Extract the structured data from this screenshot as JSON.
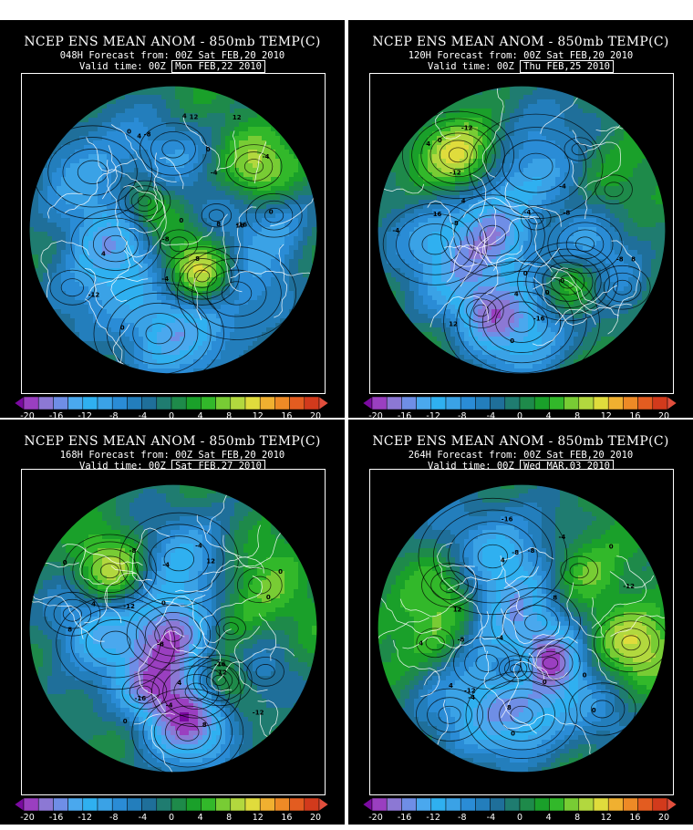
{
  "panels": [
    {
      "title": "NCEP ENS MEAN ANOM - 850mb TEMP(C)",
      "forecast": "048H Forecast from: 00Z Sat FEB,20 2010",
      "valid_prefix": "Valid time: 00Z",
      "valid_date": "Mon FEB,22 2010"
    },
    {
      "title": "NCEP ENS MEAN ANOM - 850mb TEMP(C)",
      "forecast": "120H Forecast from: 00Z Sat FEB,20 2010",
      "valid_prefix": "Valid time: 00Z",
      "valid_date": "Thu FEB,25 2010"
    },
    {
      "title": "NCEP ENS MEAN ANOM - 850mb TEMP(C)",
      "forecast": "168H Forecast from: 00Z Sat FEB,20 2010",
      "valid_prefix": "Valid time: 00Z",
      "valid_date": "Sat FEB,27 2010"
    },
    {
      "title": "NCEP ENS MEAN ANOM - 850mb TEMP(C)",
      "forecast": "264H Forecast from: 00Z Sat FEB,20 2010",
      "valid_prefix": "Valid time: 00Z",
      "valid_date": "Wed MAR,03 2010"
    }
  ],
  "colorbar": {
    "ticks": [
      "-20",
      "-16",
      "-12",
      "-8",
      "-4",
      "0",
      "4",
      "8",
      "12",
      "16",
      "20"
    ],
    "colors": [
      "#7a0aa0",
      "#9a3fc0",
      "#8c78d4",
      "#6f8ee6",
      "#4aa8ee",
      "#2fb0f0",
      "#3aa2e6",
      "#2a8cd6",
      "#237ebc",
      "#1f6f9a",
      "#1f7c70",
      "#1e8a4a",
      "#1aa02a",
      "#32b82a",
      "#78cc34",
      "#b2d83e",
      "#e0dc3c",
      "#f0b030",
      "#ee8a26",
      "#e35c20",
      "#d23a1c",
      "#e04e3c"
    ]
  },
  "map_labels": [
    [
      "0",
      "8",
      "12",
      "4",
      "-8",
      "-12",
      "-4",
      "0",
      "4",
      "-16",
      "8",
      "0",
      "-4",
      "4",
      "16",
      "-8",
      "0",
      "-4",
      "12",
      "0"
    ],
    [
      "4",
      "12",
      "-8",
      "-16",
      "0",
      "-4",
      "-8",
      "0",
      "4",
      "-12",
      "16",
      "-4",
      "8",
      "0",
      "-8",
      "-4",
      "0",
      "4",
      "-12",
      "0"
    ],
    [
      "8",
      "12",
      "-16",
      "-4",
      "0",
      "-12",
      "-8",
      "4",
      "-4",
      "0",
      "12",
      "-8",
      "0",
      "-12",
      "4",
      "-4",
      "0",
      "8",
      "-16",
      "0"
    ],
    [
      "0",
      "-16",
      "4",
      "-8",
      "-12",
      "0",
      "8",
      "-4",
      "-8",
      "4",
      "-12",
      "0",
      "-4",
      "8",
      "0",
      "-8",
      "4",
      "-4",
      "0",
      "12"
    ]
  ]
}
